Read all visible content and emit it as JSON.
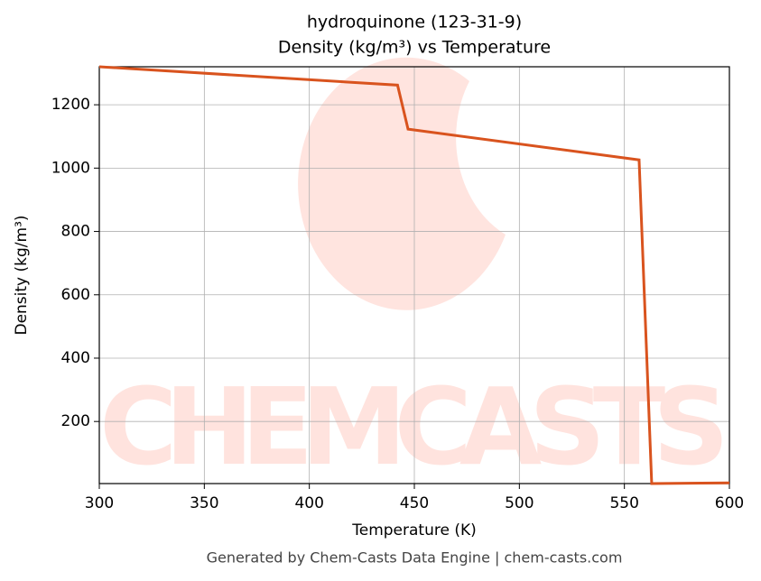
{
  "chart_data": {
    "type": "line",
    "title": [
      "hydroquinone (123-31-9)",
      "Density (kg/m³) vs Temperature"
    ],
    "x_label": "Temperature (K)",
    "y_label": "Density (kg/m³)",
    "footer": "Generated by Chem-Casts Data Engine | chem-casts.com",
    "watermark": "CHEMCASTS",
    "x": [
      300,
      442,
      447,
      557,
      563,
      600
    ],
    "series": [
      {
        "name": "Density",
        "color": "#d9531e",
        "values": [
          1320,
          1262,
          1123,
          1026,
          4,
          6
        ]
      }
    ],
    "xlim": [
      300,
      600
    ],
    "xticks": [
      300,
      350,
      400,
      450,
      500,
      550,
      600
    ],
    "ylim": [
      4,
      1320
    ],
    "yticks": [
      200,
      400,
      600,
      800,
      1000,
      1200
    ],
    "grid": true
  }
}
